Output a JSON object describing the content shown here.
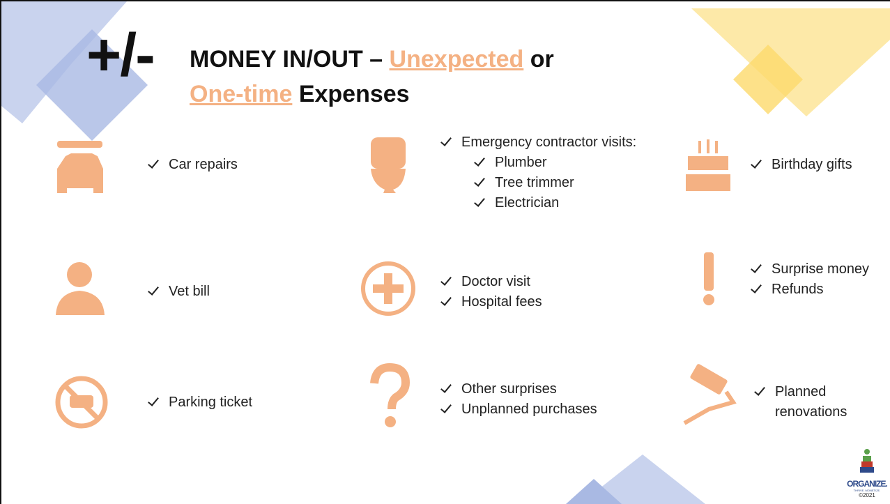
{
  "title": {
    "symbol": "+/-",
    "line1": "MONEY IN/OUT –",
    "highlight1": "Unexpected",
    "joiner": "or",
    "highlight2": "One-time",
    "line2": "Expenses"
  },
  "cards": [
    {
      "items": [
        "Car repairs"
      ]
    },
    {
      "items": [
        "Emergency contractor visits:"
      ],
      "subitems": [
        "Plumber",
        "Tree trimmer",
        "Electrician"
      ]
    },
    {
      "items": [
        "Birthday gifts"
      ]
    },
    {
      "items": [
        "Vet bill"
      ]
    },
    {
      "items": [
        "Doctor visit",
        "Hospital fees"
      ]
    },
    {
      "items": [
        "Surprise money",
        "Refunds"
      ]
    },
    {
      "items": [
        "Parking ticket"
      ]
    },
    {
      "items": [
        "Other surprises",
        "Unplanned purchases"
      ]
    },
    {
      "items": [
        "Planned renovations"
      ]
    }
  ],
  "logo": {
    "name": "ORGANIZE.",
    "tagline": "THRIVE. MONETIZE.",
    "copyright": "©2021"
  }
}
